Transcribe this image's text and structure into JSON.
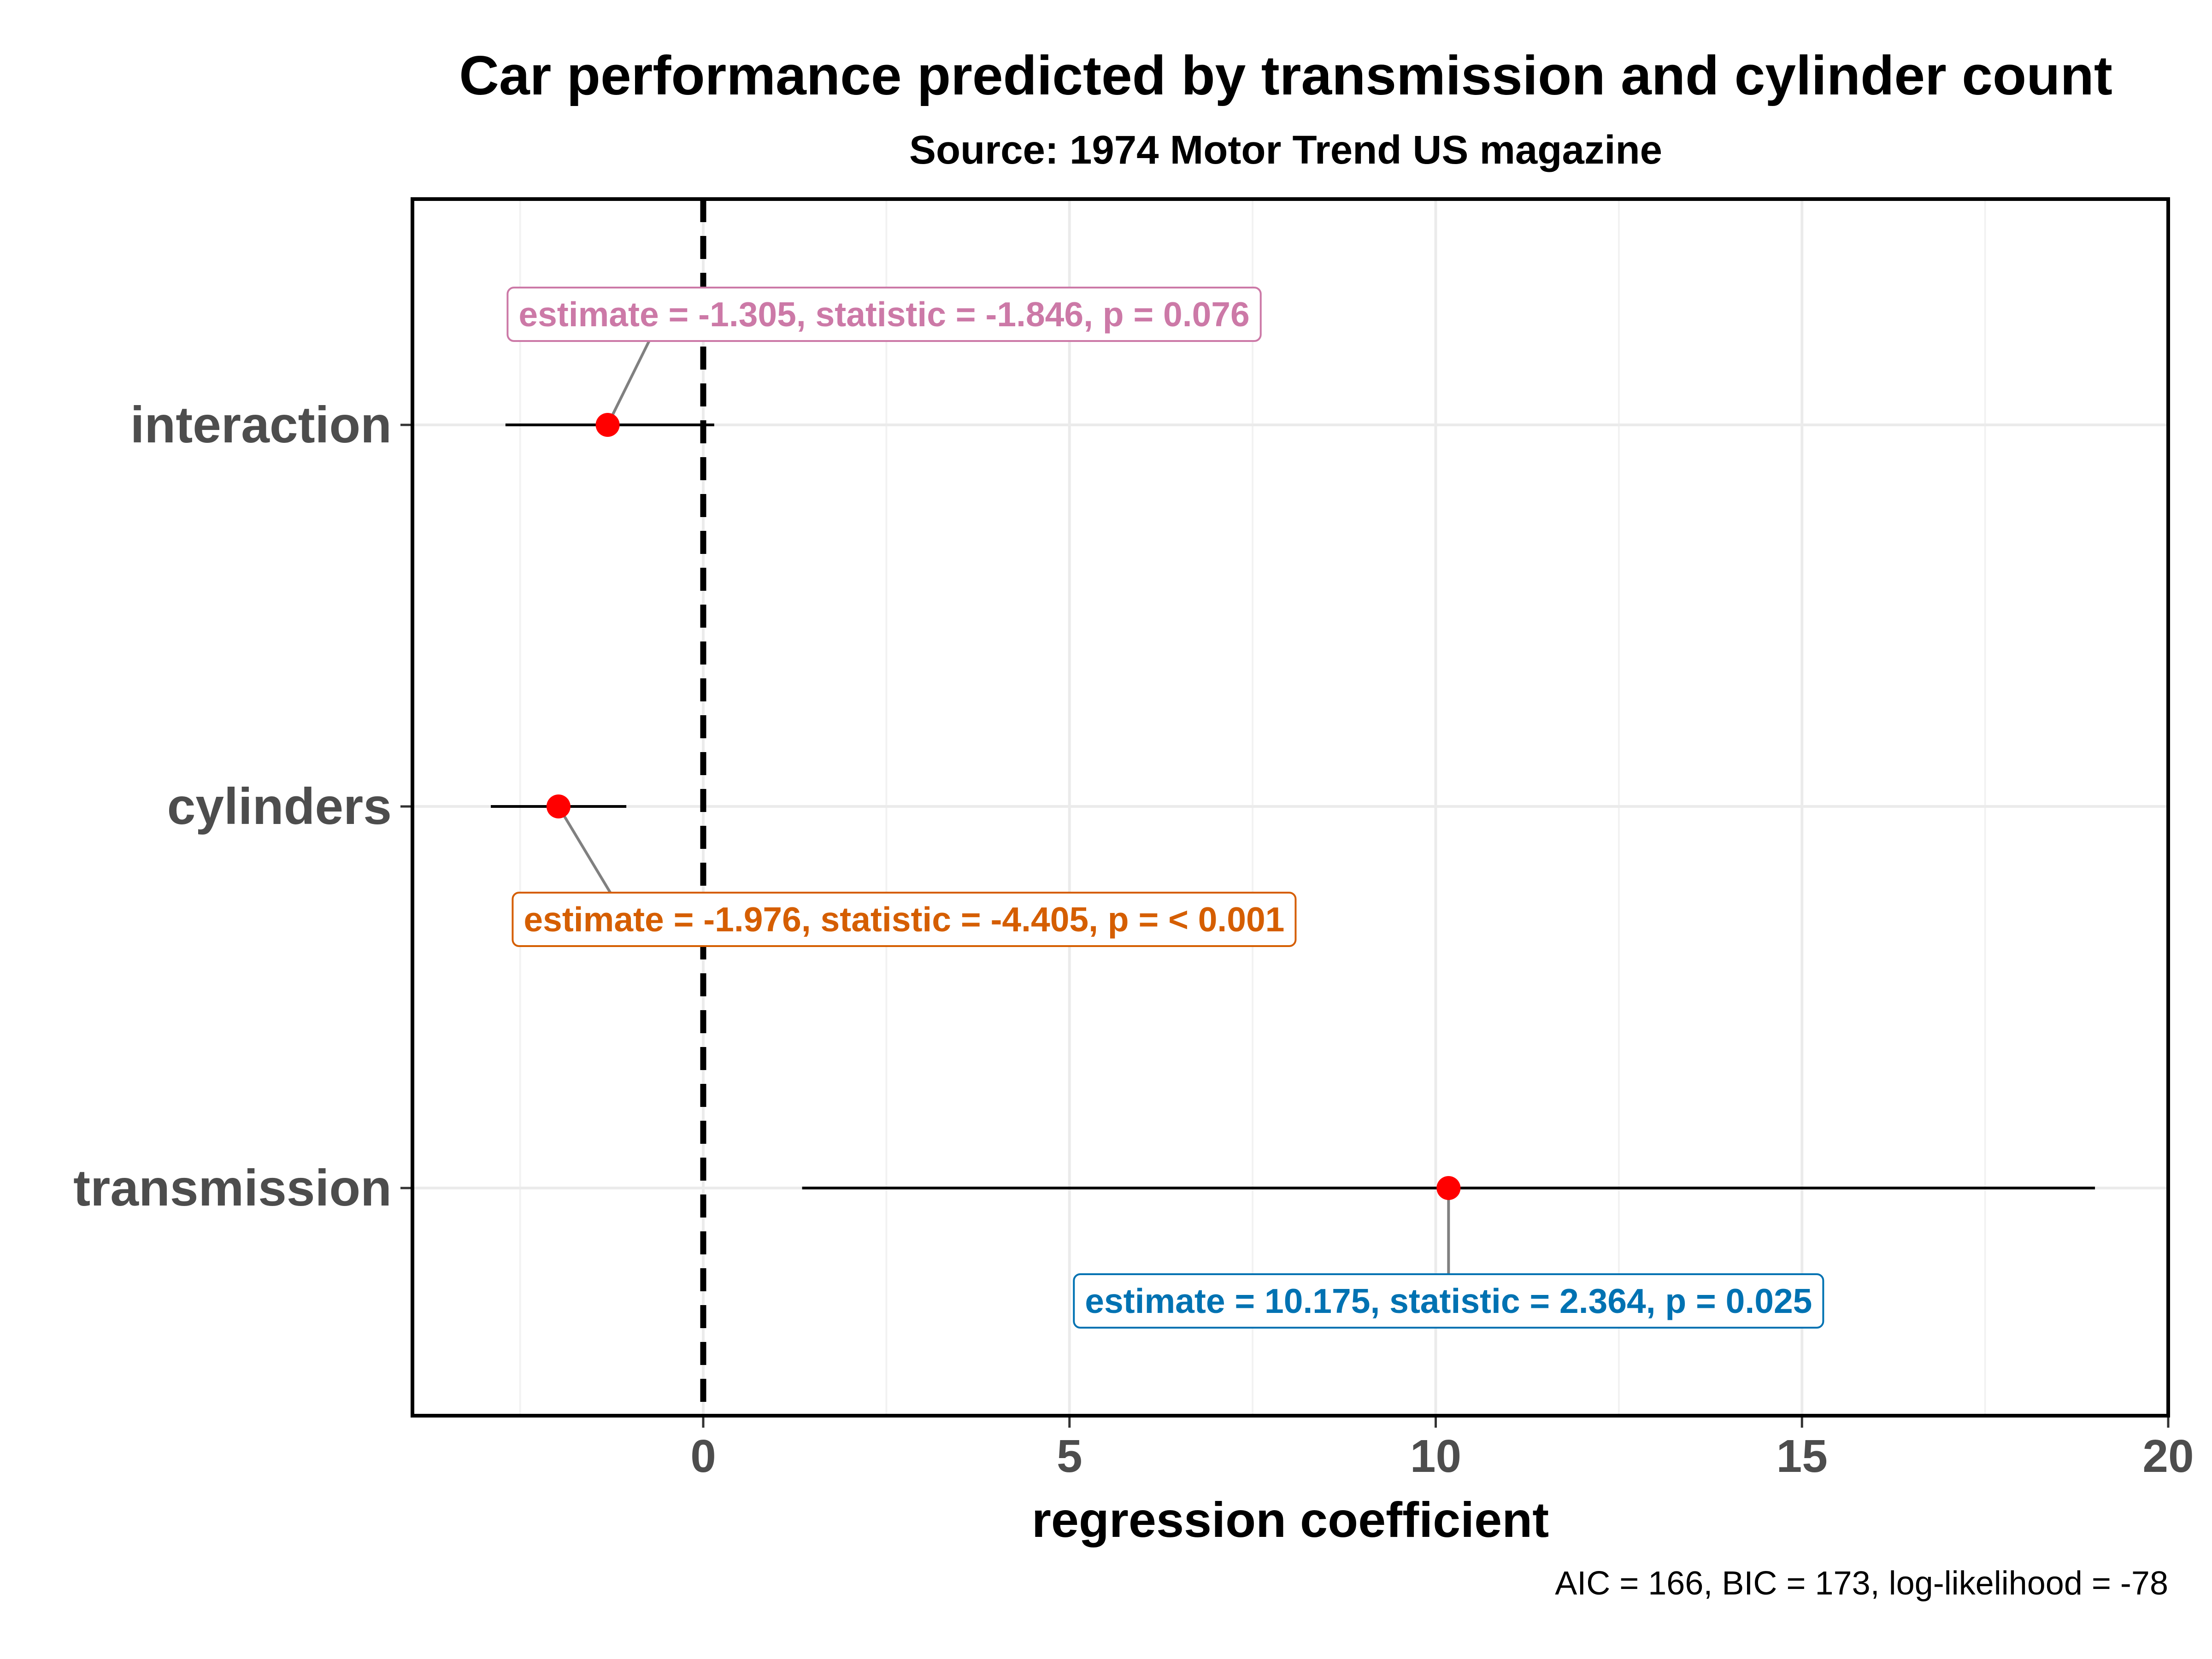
{
  "chart_data": {
    "type": "forest",
    "title": "Car performance predicted by transmission and cylinder count",
    "subtitle": "Source: 1974 Motor Trend US magazine",
    "xlabel": "regression coefficient",
    "ylabel": "",
    "caption": "AIC = 166, BIC = 173, log-likelihood = -78",
    "xlim": [
      -4,
      20
    ],
    "xticks": [
      0,
      5,
      10,
      15,
      20
    ],
    "reference_line": 0,
    "grid": true,
    "point_color": "#ff0000",
    "terms": [
      {
        "term": "interaction",
        "estimate": -1.305,
        "conf_low": -2.7,
        "conf_high": 0.15,
        "label": "estimate = -1.305, statistic = -1.846, p = 0.076",
        "label_color": "#cc79a7"
      },
      {
        "term": "cylinders",
        "estimate": -1.976,
        "conf_low": -2.9,
        "conf_high": -1.05,
        "label": "estimate = -1.976, statistic = -4.405, p = < 0.001",
        "label_color": "#d55e00"
      },
      {
        "term": "transmission",
        "estimate": 10.175,
        "conf_low": 1.35,
        "conf_high": 19.0,
        "label": "estimate = 10.175, statistic = 2.364, p = 0.025",
        "label_color": "#0072b2"
      }
    ]
  }
}
